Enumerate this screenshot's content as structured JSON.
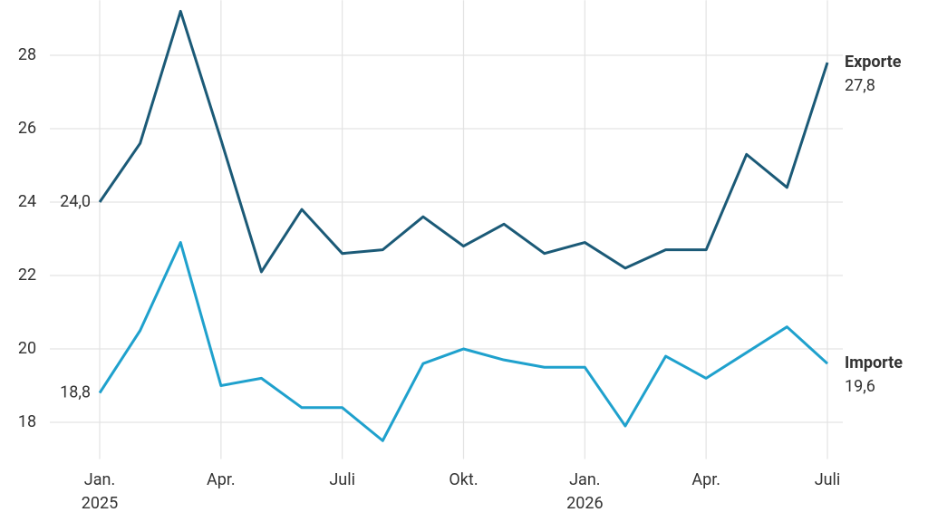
{
  "chart_data": {
    "type": "line",
    "categories": [
      "Jan.",
      null,
      null,
      "Apr.",
      null,
      null,
      "Juli",
      null,
      null,
      "Okt.",
      null,
      null,
      "Jan.",
      null,
      null,
      "Apr.",
      null,
      null,
      "Juli"
    ],
    "category_groups": [
      "2025",
      null,
      null,
      null,
      null,
      null,
      null,
      null,
      null,
      null,
      null,
      null,
      "2026",
      null,
      null,
      null,
      null,
      null,
      null
    ],
    "series": [
      {
        "name": "Exporte",
        "color": "#1b5a77",
        "values": [
          24.0,
          25.6,
          29.2,
          25.7,
          22.1,
          23.8,
          22.6,
          22.7,
          23.6,
          22.8,
          23.4,
          22.6,
          22.9,
          22.2,
          22.7,
          22.7,
          25.3,
          24.4,
          27.8
        ],
        "value_labels": [
          "24,0",
          null,
          null,
          null,
          null,
          null,
          null,
          null,
          null,
          null,
          null,
          null,
          null,
          null,
          null,
          null,
          null,
          null,
          "27,8"
        ]
      },
      {
        "name": "Importe",
        "color": "#1fa1cd",
        "values": [
          18.8,
          20.5,
          22.9,
          19.0,
          19.2,
          18.4,
          18.4,
          17.5,
          19.6,
          20.0,
          19.7,
          19.5,
          19.5,
          17.9,
          19.8,
          19.2,
          19.9,
          20.6,
          19.6
        ],
        "value_labels": [
          "18,8",
          null,
          null,
          null,
          null,
          null,
          null,
          null,
          null,
          null,
          null,
          null,
          null,
          null,
          null,
          null,
          null,
          null,
          "19,6"
        ]
      }
    ],
    "ylim": [
      17,
      29.5
    ],
    "yticks": [
      18,
      20,
      22,
      24,
      26,
      28
    ],
    "grid": true
  }
}
